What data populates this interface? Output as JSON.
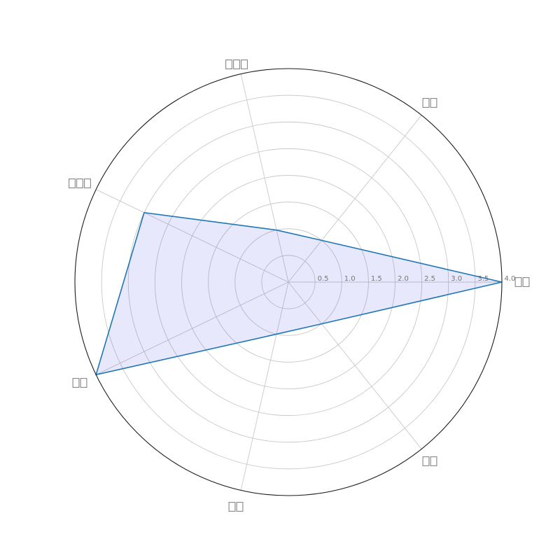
{
  "canvas": {
    "background": "#ffffff"
  },
  "chart_data": {
    "type": "radar",
    "title": "",
    "categories": [
      "□□",
      "□□",
      "□□□",
      "□□□",
      "□□",
      "□□",
      "□□"
    ],
    "category_box_counts": [
      2,
      2,
      3,
      3,
      2,
      2,
      2
    ],
    "values": [
      4.0,
      1.0,
      1.0,
      3.0,
      4.0,
      1.0,
      1.0
    ],
    "r_ticks": [
      0.5,
      1.0,
      1.5,
      2.0,
      2.5,
      3.0,
      3.5,
      4.0
    ],
    "r_tick_labels": [
      "0.5",
      "1.0",
      "1.5",
      "2.0",
      "2.5",
      "3.0",
      "3.5",
      "4.0"
    ],
    "r_max": 4.0,
    "num_spokes": 7,
    "angle_start_deg": 0,
    "direction": "counterclockwise",
    "grid": true,
    "legend": false,
    "colors": {
      "line": "#1f77b4",
      "fill": "rgba(25, 25, 235, 0.10)",
      "grid": "#c9c9c9",
      "spine": "#1c1c1c",
      "tick_label": "#767676",
      "category_label": "#878787"
    }
  }
}
